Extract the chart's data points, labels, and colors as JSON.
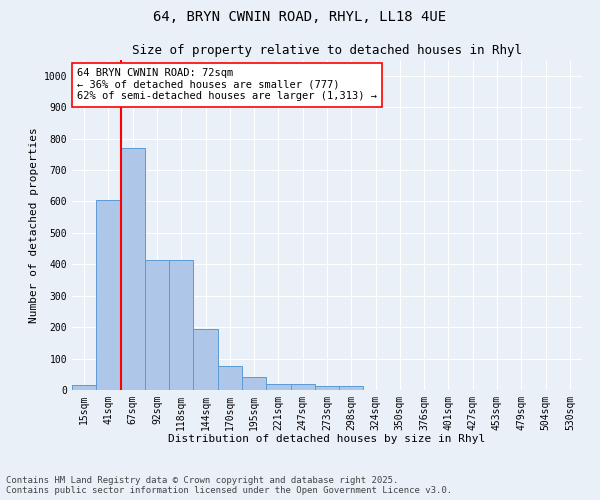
{
  "title_line1": "64, BRYN CWNIN ROAD, RHYL, LL18 4UE",
  "title_line2": "Size of property relative to detached houses in Rhyl",
  "xlabel": "Distribution of detached houses by size in Rhyl",
  "ylabel": "Number of detached properties",
  "categories": [
    "15sqm",
    "41sqm",
    "67sqm",
    "92sqm",
    "118sqm",
    "144sqm",
    "170sqm",
    "195sqm",
    "221sqm",
    "247sqm",
    "273sqm",
    "298sqm",
    "324sqm",
    "350sqm",
    "376sqm",
    "401sqm",
    "427sqm",
    "453sqm",
    "479sqm",
    "504sqm",
    "530sqm"
  ],
  "values": [
    15,
    605,
    770,
    415,
    415,
    193,
    76,
    40,
    18,
    18,
    13,
    13,
    0,
    0,
    0,
    0,
    0,
    0,
    0,
    0,
    0
  ],
  "bar_color": "#aec6e8",
  "bar_edge_color": "#5b9bd5",
  "vline_color": "red",
  "vline_x_index": 2,
  "annotation_line1": "64 BRYN CWNIN ROAD: 72sqm",
  "annotation_line2": "← 36% of detached houses are smaller (777)",
  "annotation_line3": "62% of semi-detached houses are larger (1,313) →",
  "annotation_box_color": "white",
  "annotation_box_edge_color": "red",
  "ylim": [
    0,
    1050
  ],
  "yticks": [
    0,
    100,
    200,
    300,
    400,
    500,
    600,
    700,
    800,
    900,
    1000
  ],
  "background_color": "#eaf0f8",
  "grid_color": "white",
  "footer_line1": "Contains HM Land Registry data © Crown copyright and database right 2025.",
  "footer_line2": "Contains public sector information licensed under the Open Government Licence v3.0.",
  "title_fontsize": 10,
  "subtitle_fontsize": 9,
  "axis_label_fontsize": 8,
  "tick_fontsize": 7,
  "annotation_fontsize": 7.5,
  "footer_fontsize": 6.5
}
